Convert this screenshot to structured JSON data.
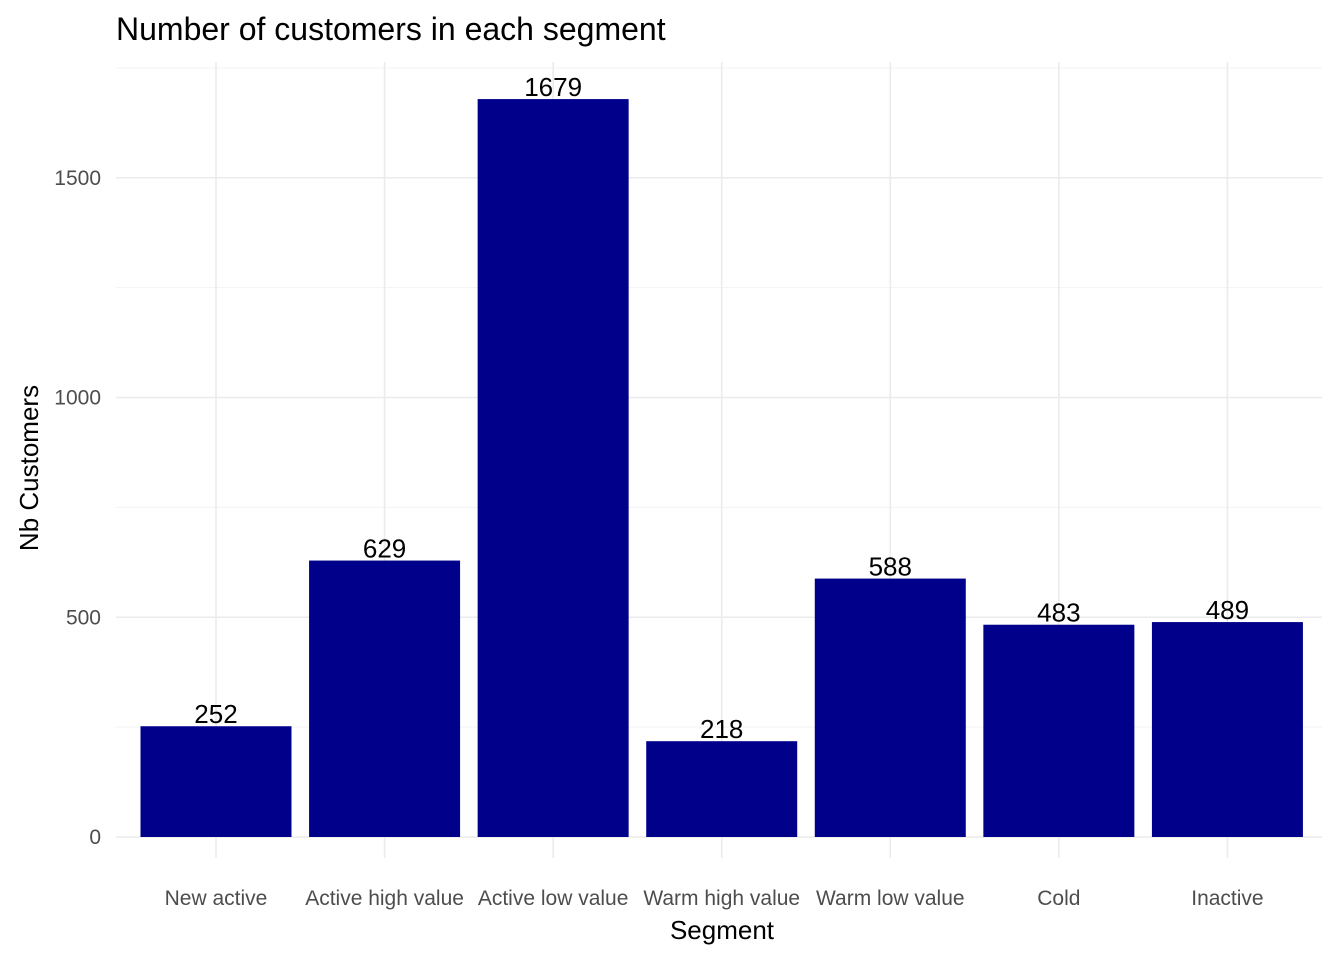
{
  "chart_data": {
    "type": "bar",
    "title": "Number of customers in each segment",
    "xlabel": "Segment",
    "ylabel": "Nb Customers",
    "categories": [
      "New active",
      "Active high value",
      "Active low value",
      "Warm high value",
      "Warm low value",
      "Cold",
      "Inactive"
    ],
    "values": [
      252,
      629,
      1679,
      218,
      588,
      483,
      489
    ],
    "data_labels": [
      "252",
      "629",
      "1679",
      "218",
      "588",
      "483",
      "489"
    ],
    "ylim": [
      0,
      1750
    ],
    "yticks": [
      0,
      500,
      1000,
      1500
    ],
    "ytick_labels": [
      "0",
      "500",
      "1000",
      "1500"
    ],
    "grid": true,
    "legend": "none",
    "bar_color": "#00008B"
  }
}
